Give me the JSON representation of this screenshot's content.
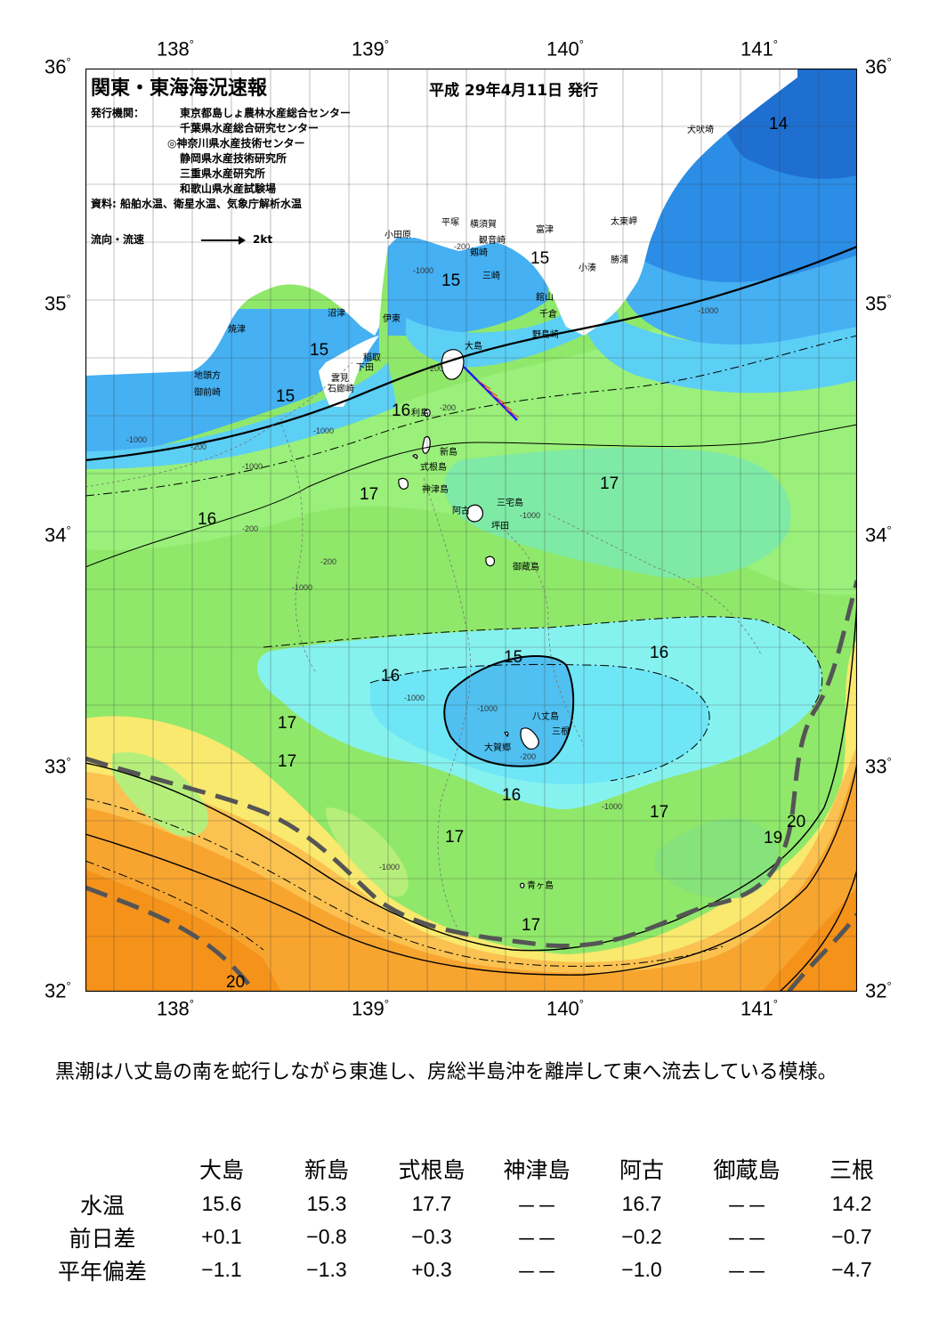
{
  "header": {
    "title": "関東・東海海況速報",
    "date": "平成  29年4月11日  発行",
    "agency_label": "発行機関：",
    "agencies": [
      "東京都島しょ農林水産総合センター",
      "千葉県水産総合研究センター",
      "◎神奈川県水産技術センター",
      "静岡県水産技術研究所",
      "三重県水産研究所",
      "和歌山県水産試験場"
    ],
    "sources": "資料: 船舶水温、衛星水温、気象庁解析水温",
    "legend_label": "流向・流速",
    "legend_value": "2kt"
  },
  "axes": {
    "lon_labels": [
      "138",
      "139",
      "140",
      "141"
    ],
    "lat_labels": [
      "36",
      "35",
      "34",
      "33",
      "32"
    ],
    "deg_mark": "°"
  },
  "places": {
    "inubozaki": "犬吠埼",
    "taitomisaki": "太東岬",
    "katsuura": "勝浦",
    "kominato": "小湊",
    "tomiura": "富津",
    "tateyama": "館山",
    "chikura": "千倉",
    "nojimazaki": "野島崎",
    "odawara": "小田原",
    "hiratsuka": "平塚",
    "yokosuka": "横須賀",
    "kannonzaki": "観音崎",
    "tsurugisaki": "剱崎",
    "misaki": "三崎",
    "yaizu": "焼津",
    "numazu": "沼津",
    "ito": "伊東",
    "inatori": "稲取",
    "shimoda": "下田",
    "kumomi": "雲見",
    "irozaki": "石廊崎",
    "chito": "地頭方",
    "omaezaki": "御前崎",
    "oshima": "大島",
    "toshima": "利島",
    "niijima": "新島",
    "shikinejima": "式根島",
    "kozushima": "神津島",
    "miyakejima": "三宅島",
    "ako": "阿古",
    "tsubota": "坪田",
    "mikurajima": "御蔵島",
    "hachijojima": "八丈島",
    "mitsune": "三根",
    "okago": "大賀郷",
    "aogashima": "青ヶ島"
  },
  "isotherm_labels": [
    "14",
    "15",
    "15",
    "15",
    "15",
    "16",
    "16",
    "17",
    "17",
    "15",
    "16",
    "16",
    "17",
    "17",
    "16",
    "17",
    "17",
    "19",
    "20",
    "17",
    "20"
  ],
  "depth_labels": [
    "-200",
    "-1000",
    "-200",
    "-1000",
    "-1000",
    "-200",
    "-1000",
    "-200",
    "-1000",
    "-1000",
    "-200",
    "-200",
    "-1000",
    "-1000",
    "-1000",
    "-1000",
    "-1000",
    "-200"
  ],
  "summary": "　黒潮は八丈島の南を蛇行しながら東進し、房総半島沖を離岸して東へ流去している模様。",
  "stats": {
    "columns": [
      "大島",
      "新島",
      "式根島",
      "神津島",
      "阿古",
      "御蔵島",
      "三根"
    ],
    "rows": [
      {
        "label": "水温",
        "values": [
          "15.6",
          "15.3",
          "17.7",
          "－－",
          "16.7",
          "－－",
          "14.2"
        ]
      },
      {
        "label": "前日差",
        "values": [
          "+0.1",
          "−0.8",
          "−0.3",
          "－－",
          "−0.2",
          "－－",
          "−0.7"
        ]
      },
      {
        "label": "平年偏差",
        "values": [
          "−1.1",
          "−1.3",
          "+0.3",
          "－－",
          "−1.0",
          "－－",
          "−4.7"
        ]
      }
    ]
  },
  "colors": {
    "deep_blue": "#2b8de6",
    "mid_blue": "#45b0f2",
    "light_blue": "#5ccff5",
    "cyan": "#7ef0f5",
    "pale_cyan": "#9cf5ee",
    "pale_green": "#b8f28e",
    "green": "#8fe86a",
    "yellow": "#f9e96e",
    "light_orange": "#fbc251",
    "orange": "#f8a530",
    "deep_orange": "#f5921a",
    "land": "#ffffff",
    "kuroshio_axis": "#555555"
  }
}
